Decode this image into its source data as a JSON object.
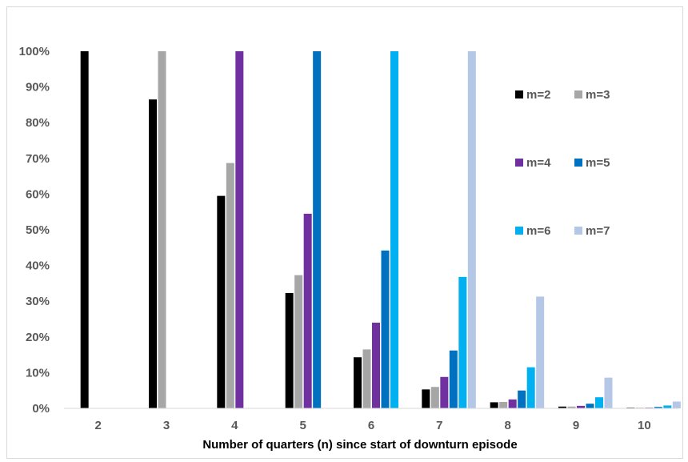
{
  "chart_data": {
    "type": "bar",
    "xlabel": "Number of quarters (n) since start of downturn episode",
    "ylabel": "",
    "ylim": [
      0,
      100
    ],
    "y_ticks": [
      "0%",
      "10%",
      "20%",
      "30%",
      "40%",
      "50%",
      "60%",
      "70%",
      "80%",
      "90%",
      "100%"
    ],
    "categories": [
      "2",
      "3",
      "4",
      "5",
      "6",
      "7",
      "8",
      "9",
      "10"
    ],
    "series": [
      {
        "name": "m=2",
        "color": "#000000",
        "values": [
          100,
          86.5,
          59.5,
          32.3,
          14.3,
          5.3,
          1.7,
          0.5,
          0.2
        ]
      },
      {
        "name": "m=3",
        "color": "#a6a6a6",
        "values": [
          null,
          100,
          68.7,
          37.3,
          16.5,
          6.0,
          1.8,
          0.5,
          0.2
        ]
      },
      {
        "name": "m=4",
        "color": "#7030a0",
        "values": [
          null,
          null,
          100,
          54.5,
          24.0,
          8.8,
          2.5,
          0.7,
          0.2
        ]
      },
      {
        "name": "m=5",
        "color": "#0070c0",
        "values": [
          null,
          null,
          null,
          100,
          44.2,
          16.2,
          5.0,
          1.3,
          0.4
        ]
      },
      {
        "name": "m=6",
        "color": "#00b0f0",
        "values": [
          null,
          null,
          null,
          null,
          100,
          36.8,
          11.5,
          3.1,
          0.8
        ]
      },
      {
        "name": "m=7",
        "color": "#b4c7e7",
        "values": [
          null,
          null,
          null,
          null,
          null,
          100,
          31.3,
          8.6,
          1.9
        ]
      }
    ],
    "legend_position": "right, in 3 rows of 2",
    "grid": false
  }
}
